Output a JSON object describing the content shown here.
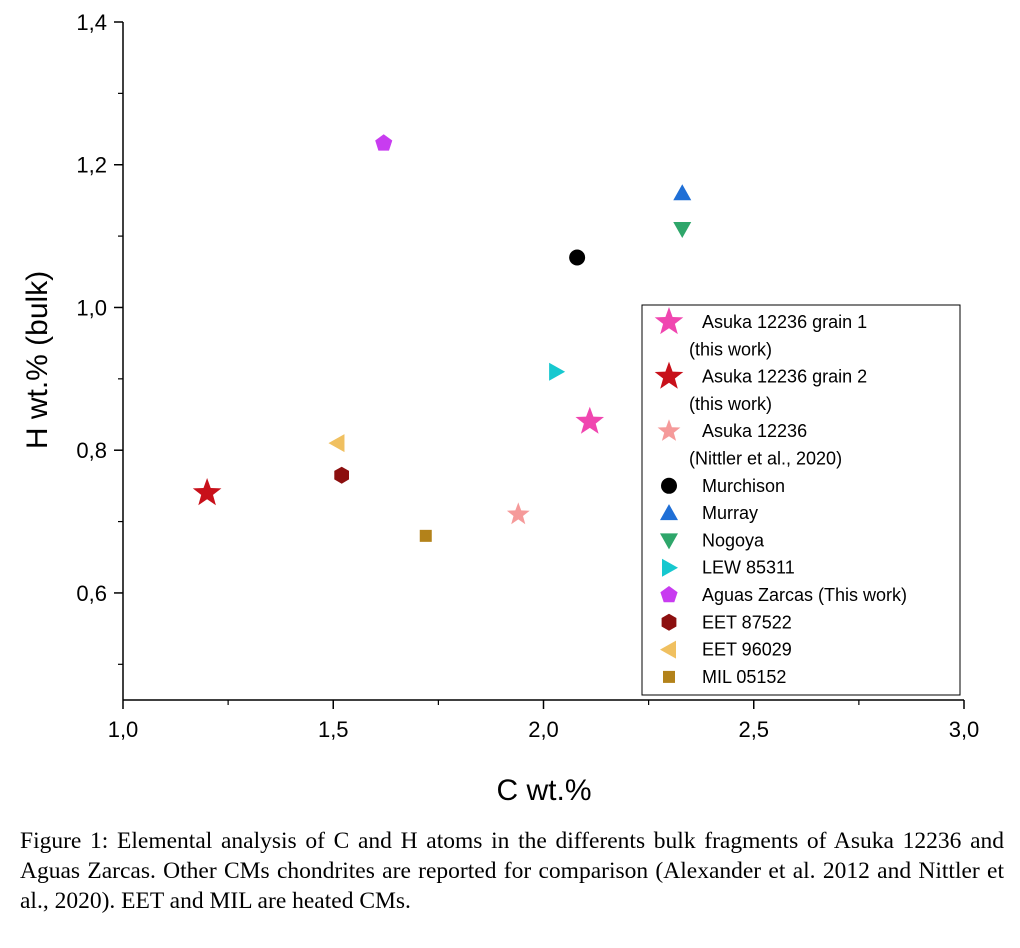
{
  "chart_data": {
    "type": "scatter",
    "title": "",
    "xlabel": "C wt.%",
    "ylabel": "H wt.% (bulk)",
    "xlim": [
      1.0,
      3.0
    ],
    "ylim": [
      0.45,
      1.4
    ],
    "x_ticks": [
      1.0,
      1.5,
      2.0,
      2.5,
      3.0
    ],
    "x_tick_labels": [
      "1,0",
      "1,5",
      "2,0",
      "2,5",
      "3,0"
    ],
    "y_ticks": [
      0.6,
      0.8,
      1.0,
      1.2,
      1.4
    ],
    "y_tick_labels": [
      "0,6",
      "0,8",
      "1,0",
      "1,2",
      "1,4"
    ],
    "grid": false,
    "legend_position": "right",
    "series": [
      {
        "name": "Asuka 12236 grain 1",
        "name_line2": "(this work)",
        "marker": "star-large",
        "color": "#f046b0",
        "x": [
          2.11
        ],
        "y": [
          0.84
        ]
      },
      {
        "name": "Asuka 12236 grain 2",
        "name_line2": "(this work)",
        "marker": "star-large",
        "color": "#c8101a",
        "x": [
          1.2
        ],
        "y": [
          0.74
        ]
      },
      {
        "name": "Asuka 12236",
        "name_line2": "(Nittler et al., 2020)",
        "marker": "star",
        "color": "#f59a9a",
        "x": [
          1.94
        ],
        "y": [
          0.71
        ]
      },
      {
        "name": "Murchison",
        "marker": "circle",
        "color": "#000000",
        "x": [
          2.08
        ],
        "y": [
          1.07
        ]
      },
      {
        "name": "Murray",
        "marker": "triangle-up",
        "color": "#1f6fd6",
        "x": [
          2.33
        ],
        "y": [
          1.16
        ]
      },
      {
        "name": "Nogoya",
        "marker": "triangle-down",
        "color": "#2ea66a",
        "x": [
          2.33
        ],
        "y": [
          1.11
        ]
      },
      {
        "name": "LEW 85311",
        "marker": "triangle-right",
        "color": "#16c8cf",
        "x": [
          2.03
        ],
        "y": [
          0.91
        ]
      },
      {
        "name": "Aguas Zarcas (This work)",
        "marker": "pentagon",
        "color": "#c83cf0",
        "x": [
          1.62
        ],
        "y": [
          1.23
        ]
      },
      {
        "name": "EET 87522",
        "marker": "hexagon",
        "color": "#8c0f0f",
        "x": [
          1.52
        ],
        "y": [
          0.765
        ]
      },
      {
        "name": "EET 96029",
        "marker": "triangle-left",
        "color": "#f0c060",
        "x": [
          1.51
        ],
        "y": [
          0.81
        ]
      },
      {
        "name": "MIL 05152",
        "marker": "square",
        "color": "#b3821a",
        "x": [
          1.72
        ],
        "y": [
          0.68
        ]
      }
    ]
  },
  "caption": "Figure 1: Elemental analysis of C and H atoms in the differents bulk fragments of Asuka 12236 and Aguas Zarcas. Other CMs chondrites are reported for comparison (Alexander et al. 2012 and Nittler et al., 2020). EET and MIL are heated CMs."
}
